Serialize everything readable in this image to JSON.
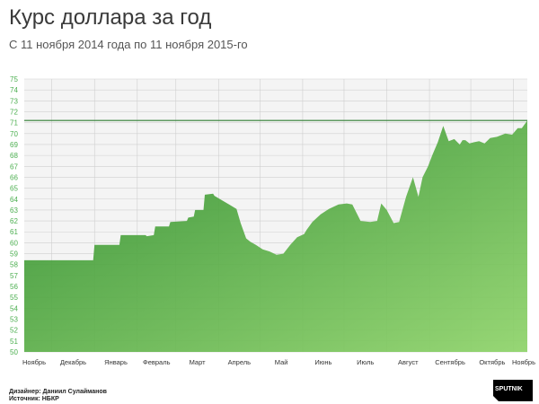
{
  "header": {
    "title": "Курс доллара за год",
    "subtitle": "С 11 ноября 2014 года по 11 ноября 2015-го"
  },
  "footer": {
    "designer": "Дизайнер: Даниил Сулайманов",
    "source": "Источник: НБКР"
  },
  "logo": {
    "text": "SPUTNIK",
    "color": "#000000"
  },
  "colors": {
    "area_top": "#2a8a2a",
    "area_bottom": "#8fd46a",
    "current_line": "#2e7d32",
    "tick_label": "#4caf50",
    "grid": "#cfcfcf",
    "plot_bg": "#f4f4f4"
  },
  "chart_data": {
    "type": "area",
    "title": "Курс доллара за год",
    "subtitle": "С 11 ноября 2014 года по 11 ноября 2015-го",
    "xlabel": "",
    "ylabel": "",
    "ylim": [
      50,
      75
    ],
    "yticks": [
      50,
      51,
      52,
      53,
      54,
      55,
      56,
      57,
      58,
      59,
      60,
      61,
      62,
      63,
      64,
      65,
      66,
      67,
      68,
      69,
      70,
      71,
      72,
      73,
      74,
      75
    ],
    "x_range": [
      "2014-11-11",
      "2015-11-11"
    ],
    "month_labels": [
      "Ноябрь",
      "Декабрь",
      "Январь",
      "Февраль",
      "Март",
      "Апрель",
      "Май",
      "Июнь",
      "Июль",
      "Август",
      "Сентябрь",
      "Октябрь",
      "Ноябрь"
    ],
    "month_label_dates": [
      "2014-11-01",
      "2014-12-01",
      "2015-01-01",
      "2015-02-01",
      "2015-03-01",
      "2015-04-01",
      "2015-05-01",
      "2015-06-01",
      "2015-07-01",
      "2015-08-01",
      "2015-09-01",
      "2015-10-01",
      "2015-11-01"
    ],
    "current_value": 71.2,
    "grid": true,
    "series": [
      {
        "x": [
          "2014-11-11",
          "2014-12-31",
          "2015-01-01",
          "2015-01-19",
          "2015-01-20",
          "2015-02-07",
          "2015-02-08",
          "2015-02-13",
          "2015-02-14",
          "2015-02-24",
          "2015-02-25",
          "2015-03-09",
          "2015-03-10",
          "2015-03-14",
          "2015-03-15",
          "2015-03-21",
          "2015-03-22",
          "2015-03-28",
          "2015-03-29",
          "2015-04-14",
          "2015-04-17",
          "2015-04-21",
          "2015-04-24",
          "2015-04-28",
          "2015-05-03",
          "2015-05-08",
          "2015-05-13",
          "2015-05-18",
          "2015-05-23",
          "2015-05-28",
          "2015-06-02",
          "2015-06-04",
          "2015-06-08",
          "2015-06-14",
          "2015-06-20",
          "2015-06-27",
          "2015-07-03",
          "2015-07-07",
          "2015-07-13",
          "2015-07-20",
          "2015-07-25",
          "2015-07-28",
          "2015-08-01",
          "2015-08-06",
          "2015-08-10",
          "2015-08-15",
          "2015-08-20",
          "2015-08-24",
          "2015-08-27",
          "2015-08-31",
          "2015-09-03",
          "2015-09-07",
          "2015-09-11",
          "2015-09-15",
          "2015-09-19",
          "2015-09-23",
          "2015-09-25",
          "2015-09-27",
          "2015-09-30",
          "2015-10-03",
          "2015-10-07",
          "2015-10-11",
          "2015-10-15",
          "2015-10-20",
          "2015-10-26",
          "2015-10-31",
          "2015-11-04",
          "2015-11-07",
          "2015-11-11"
        ],
        "values": [
          58.4,
          58.4,
          59.8,
          59.8,
          60.7,
          60.7,
          60.6,
          60.7,
          61.5,
          61.5,
          61.9,
          62.0,
          62.3,
          62.4,
          63.0,
          63.0,
          64.4,
          64.5,
          64.3,
          63.1,
          61.8,
          60.4,
          60.1,
          59.8,
          59.4,
          59.2,
          58.9,
          59.0,
          59.8,
          60.5,
          60.8,
          61.2,
          61.9,
          62.6,
          63.1,
          63.5,
          63.6,
          63.5,
          62.0,
          61.9,
          62.0,
          63.6,
          63.0,
          61.8,
          61.9,
          64.2,
          66.0,
          64.2,
          66.0,
          67.0,
          68.0,
          69.2,
          70.7,
          69.3,
          69.5,
          69.0,
          69.4,
          69.4,
          69.1,
          69.2,
          69.3,
          69.1,
          69.6,
          69.7,
          70.0,
          69.9,
          70.5,
          70.5,
          71.2
        ]
      }
    ]
  }
}
